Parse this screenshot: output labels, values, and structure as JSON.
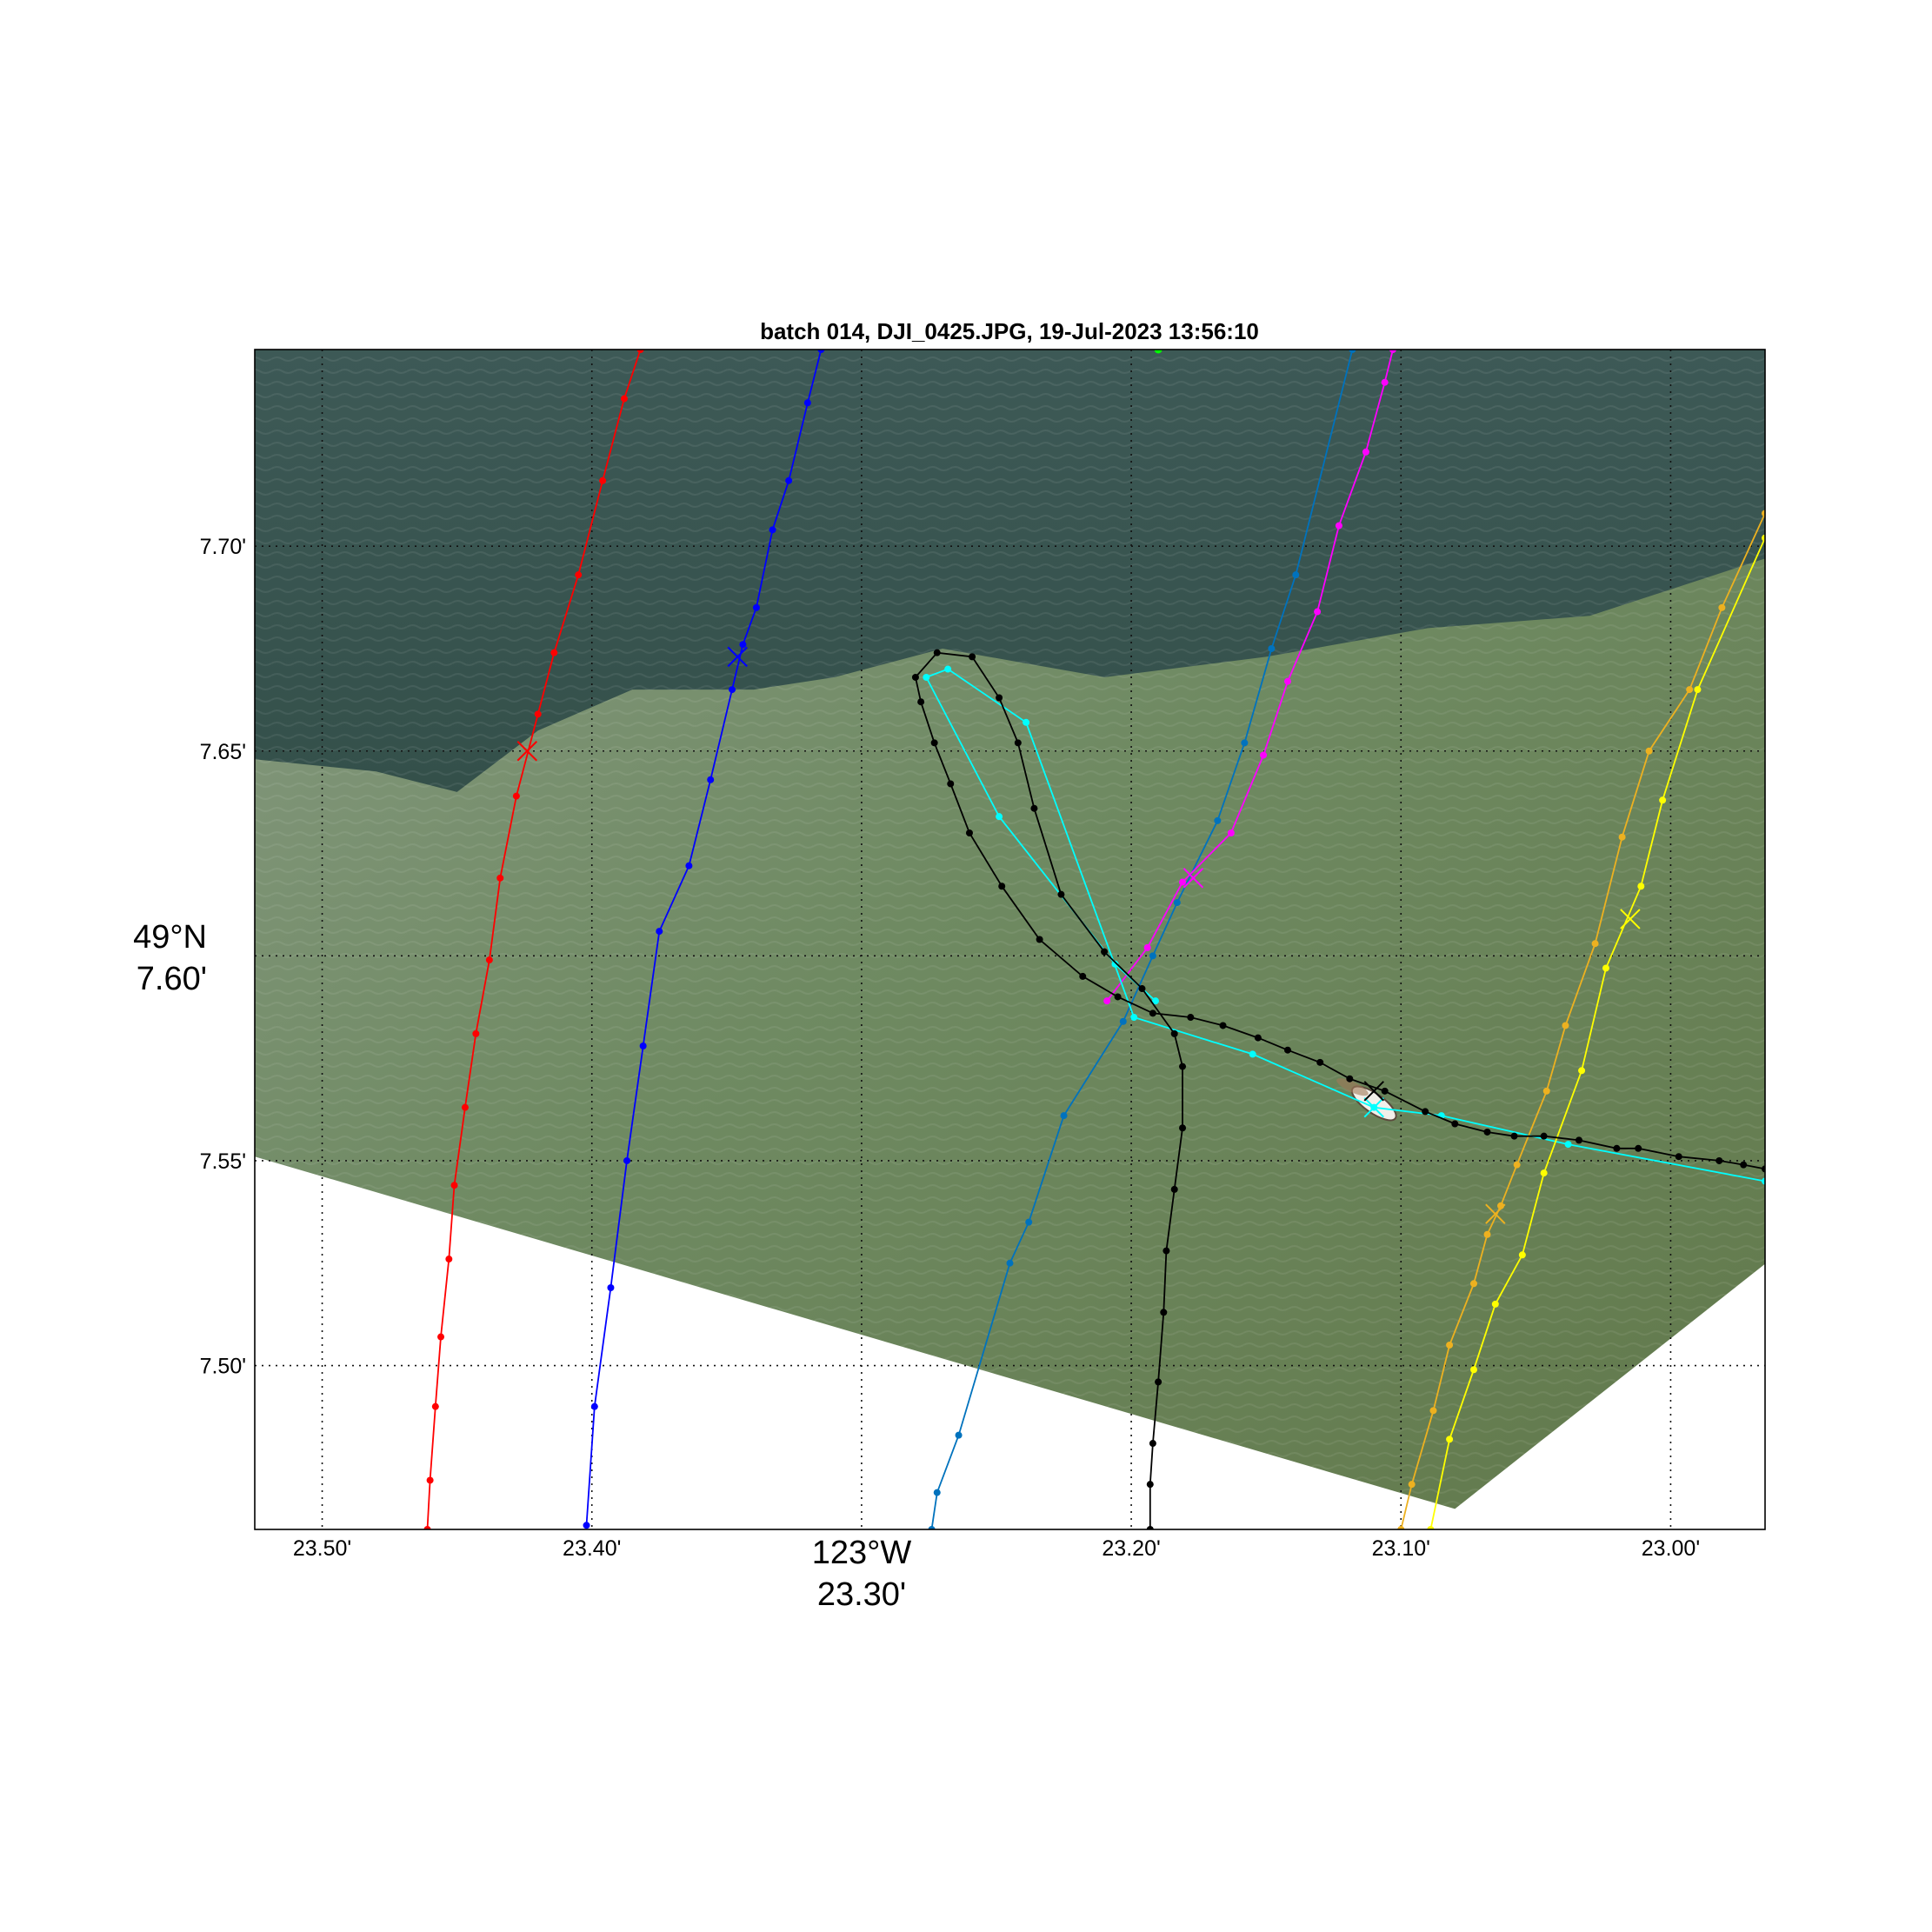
{
  "title": "batch 014, DJI_0425.JPG, 19-Jul-2023 13:56:10",
  "x_axis": {
    "ticks": [
      "23.50'",
      "23.40'",
      "23.30'",
      "23.20'",
      "23.10'",
      "23.00'"
    ],
    "center_degree_label": "123°W",
    "center_minute_label": "23.30'"
  },
  "y_axis": {
    "ticks": [
      "7.70'",
      "7.65'",
      "7.60'",
      "7.55'",
      "7.50'"
    ],
    "center_degree_label": "49°N",
    "center_minute_label": "7.60'"
  },
  "chart_data": {
    "type": "map-overlay",
    "x_units": "minutes West of 123°W (decreasing to the right)",
    "y_units": "minutes North of 49°N",
    "xlim": [
      23.525,
      22.965
    ],
    "ylim": [
      7.46,
      7.748
    ],
    "x_tick_values": [
      23.5,
      23.4,
      23.3,
      23.2,
      23.1,
      23.0
    ],
    "y_tick_values": [
      7.7,
      7.65,
      7.6,
      7.55,
      7.5
    ],
    "grid": true,
    "background": "drone photo of sea surface, dark blue-green water to the north, turbid green plume to the south, small vessel near 23.11' / 7.565'",
    "image_footprint": [
      [
        23.525,
        7.748
      ],
      [
        22.932,
        7.748
      ],
      [
        22.955,
        7.53
      ],
      [
        23.08,
        7.465
      ],
      [
        23.525,
        7.551
      ]
    ],
    "tracks": [
      {
        "color": "#ff0000",
        "points": [
          [
            23.382,
            7.748
          ],
          [
            23.388,
            7.736
          ],
          [
            23.396,
            7.716
          ],
          [
            23.405,
            7.693
          ],
          [
            23.414,
            7.674
          ],
          [
            23.42,
            7.659
          ],
          [
            23.428,
            7.639
          ],
          [
            23.434,
            7.619
          ],
          [
            23.438,
            7.599
          ],
          [
            23.443,
            7.581
          ],
          [
            23.447,
            7.563
          ],
          [
            23.451,
            7.544
          ],
          [
            23.453,
            7.526
          ],
          [
            23.456,
            7.507
          ],
          [
            23.458,
            7.49
          ],
          [
            23.46,
            7.472
          ],
          [
            23.461,
            7.46
          ]
        ],
        "cross": [
          23.424,
          7.65
        ]
      },
      {
        "color": "#0000ff",
        "points": [
          [
            23.315,
            7.748
          ],
          [
            23.32,
            7.735
          ],
          [
            23.327,
            7.716
          ],
          [
            23.333,
            7.704
          ],
          [
            23.339,
            7.685
          ],
          [
            23.344,
            7.676
          ],
          [
            23.348,
            7.665
          ],
          [
            23.356,
            7.643
          ],
          [
            23.364,
            7.622
          ],
          [
            23.375,
            7.606
          ],
          [
            23.381,
            7.578
          ],
          [
            23.387,
            7.55
          ],
          [
            23.393,
            7.519
          ],
          [
            23.399,
            7.49
          ],
          [
            23.402,
            7.461
          ]
        ],
        "cross": [
          23.346,
          7.673
        ]
      },
      {
        "color": "#0072bd",
        "points": [
          [
            23.118,
            7.748
          ],
          [
            23.139,
            7.693
          ],
          [
            23.148,
            7.675
          ],
          [
            23.158,
            7.652
          ],
          [
            23.168,
            7.633
          ],
          [
            23.183,
            7.613
          ],
          [
            23.192,
            7.6
          ],
          [
            23.203,
            7.584
          ],
          [
            23.225,
            7.561
          ],
          [
            23.238,
            7.535
          ],
          [
            23.245,
            7.525
          ],
          [
            23.264,
            7.483
          ],
          [
            23.272,
            7.469
          ],
          [
            23.274,
            7.46
          ]
        ],
        "cross": null
      },
      {
        "color": "#ff00ff",
        "points": [
          [
            23.103,
            7.748
          ],
          [
            23.106,
            7.74
          ],
          [
            23.113,
            7.723
          ],
          [
            23.123,
            7.705
          ],
          [
            23.131,
            7.684
          ],
          [
            23.142,
            7.667
          ],
          [
            23.151,
            7.649
          ],
          [
            23.163,
            7.63
          ],
          [
            23.181,
            7.618
          ],
          [
            23.194,
            7.602
          ],
          [
            23.209,
            7.589
          ]
        ],
        "cross": [
          23.177,
          7.619
        ]
      },
      {
        "color": "#00ffff",
        "points": [
          [
            22.965,
            7.545
          ],
          [
            23.038,
            7.554
          ],
          [
            23.085,
            7.561
          ],
          [
            23.11,
            7.563
          ],
          [
            23.155,
            7.576
          ],
          [
            23.199,
            7.585
          ],
          [
            23.239,
            7.657
          ],
          [
            23.268,
            7.67
          ],
          [
            23.276,
            7.668
          ],
          [
            23.249,
            7.634
          ],
          [
            23.206,
            7.598
          ],
          [
            23.191,
            7.589
          ]
        ],
        "cross": [
          23.11,
          7.563
        ]
      },
      {
        "color": "#edb120",
        "points": [
          [
            22.965,
            7.708
          ],
          [
            22.981,
            7.685
          ],
          [
            22.993,
            7.665
          ],
          [
            23.008,
            7.65
          ],
          [
            23.018,
            7.629
          ],
          [
            23.028,
            7.603
          ],
          [
            23.039,
            7.583
          ],
          [
            23.046,
            7.567
          ],
          [
            23.057,
            7.549
          ],
          [
            23.063,
            7.539
          ],
          [
            23.068,
            7.532
          ],
          [
            23.073,
            7.52
          ],
          [
            23.082,
            7.505
          ],
          [
            23.088,
            7.489
          ],
          [
            23.096,
            7.471
          ],
          [
            23.1,
            7.46
          ]
        ],
        "cross": [
          23.065,
          7.537
        ]
      },
      {
        "color": "#ffff00",
        "points": [
          [
            22.965,
            7.702
          ],
          [
            22.99,
            7.665
          ],
          [
            23.003,
            7.638
          ],
          [
            23.011,
            7.617
          ],
          [
            23.024,
            7.597
          ],
          [
            23.033,
            7.572
          ],
          [
            23.047,
            7.547
          ],
          [
            23.055,
            7.527
          ],
          [
            23.065,
            7.515
          ],
          [
            23.073,
            7.499
          ],
          [
            23.082,
            7.482
          ],
          [
            23.089,
            7.46
          ]
        ],
        "cross": [
          23.015,
          7.609
        ]
      },
      {
        "color": "#000000",
        "points": [
          [
            22.965,
            7.548
          ],
          [
            22.973,
            7.549
          ],
          [
            22.982,
            7.55
          ],
          [
            22.997,
            7.551
          ],
          [
            23.012,
            7.553
          ],
          [
            23.02,
            7.553
          ],
          [
            23.034,
            7.555
          ],
          [
            23.047,
            7.556
          ],
          [
            23.058,
            7.556
          ],
          [
            23.068,
            7.557
          ],
          [
            23.08,
            7.559
          ],
          [
            23.091,
            7.562
          ],
          [
            23.106,
            7.567
          ],
          [
            23.119,
            7.57
          ],
          [
            23.13,
            7.574
          ],
          [
            23.142,
            7.577
          ],
          [
            23.153,
            7.58
          ],
          [
            23.166,
            7.583
          ],
          [
            23.178,
            7.585
          ],
          [
            23.192,
            7.586
          ],
          [
            23.205,
            7.59
          ],
          [
            23.218,
            7.595
          ],
          [
            23.234,
            7.604
          ],
          [
            23.248,
            7.617
          ],
          [
            23.26,
            7.63
          ],
          [
            23.267,
            7.642
          ],
          [
            23.273,
            7.652
          ],
          [
            23.278,
            7.662
          ],
          [
            23.28,
            7.668
          ],
          [
            23.272,
            7.674
          ],
          [
            23.259,
            7.673
          ],
          [
            23.249,
            7.663
          ],
          [
            23.242,
            7.652
          ],
          [
            23.236,
            7.636
          ],
          [
            23.226,
            7.615
          ],
          [
            23.21,
            7.601
          ],
          [
            23.196,
            7.592
          ],
          [
            23.184,
            7.581
          ],
          [
            23.181,
            7.573
          ],
          [
            23.181,
            7.558
          ],
          [
            23.184,
            7.543
          ],
          [
            23.187,
            7.528
          ],
          [
            23.188,
            7.513
          ],
          [
            23.19,
            7.496
          ],
          [
            23.192,
            7.481
          ],
          [
            23.193,
            7.471
          ],
          [
            23.193,
            7.46
          ]
        ],
        "cross": [
          23.11,
          7.567
        ]
      }
    ],
    "extra_markers": [
      {
        "color": "#00ff00",
        "point": [
          23.19,
          7.748
        ]
      }
    ]
  }
}
